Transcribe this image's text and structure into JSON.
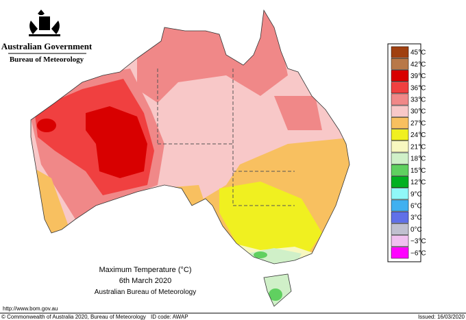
{
  "header": {
    "government": "Australian Government",
    "bureau": "Bureau of Meteorology"
  },
  "legend": {
    "items": [
      {
        "label": "45°C",
        "color": "#a04010"
      },
      {
        "label": "42°C",
        "color": "#b87848"
      },
      {
        "label": "39°C",
        "color": "#d80000"
      },
      {
        "label": "36°C",
        "color": "#f04040"
      },
      {
        "label": "33°C",
        "color": "#f08888"
      },
      {
        "label": "30°C",
        "color": "#f8c8c8"
      },
      {
        "label": "27°C",
        "color": "#f8c060"
      },
      {
        "label": "24°C",
        "color": "#f0f020"
      },
      {
        "label": "21°C",
        "color": "#f8f8c0"
      },
      {
        "label": "18°C",
        "color": "#d0f0c8"
      },
      {
        "label": "15°C",
        "color": "#60d060"
      },
      {
        "label": "12°C",
        "color": "#00b020"
      },
      {
        "label": "9°C",
        "color": "#90f8f8"
      },
      {
        "label": "6°C",
        "color": "#40b0f0"
      },
      {
        "label": "3°C",
        "color": "#6070e8"
      },
      {
        "label": "0°C",
        "color": "#c0c0d0"
      },
      {
        "label": "−3°C",
        "color": "#f0c0f0"
      },
      {
        "label": "−6°C",
        "color": "#ff00ff"
      }
    ]
  },
  "caption": {
    "title": "Maximum Temperature (°C)",
    "date": "6th March 2020",
    "source": "Australian Bureau of Meteorology"
  },
  "footer": {
    "url": "http://www.bom.gov.au",
    "copyright": "© Commonwealth of Australia 2020, Bureau of Meteorology",
    "id_code": "ID code: AWAP",
    "issued": "Issued: 16/03/2020"
  }
}
